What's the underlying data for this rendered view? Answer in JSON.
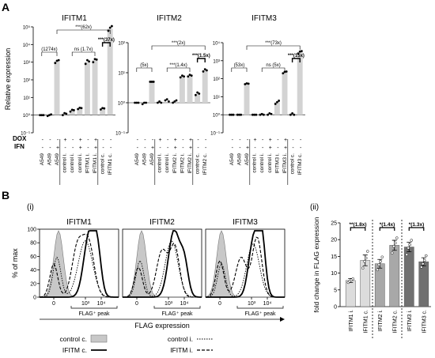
{
  "figure": {
    "panel_a_letter": "A",
    "panel_b_letter": "B",
    "panel_b_i": "(i)",
    "panel_b_ii": "(ii)",
    "row_dox": "DOX",
    "row_ifn": "IFN"
  },
  "chart_data": [
    {
      "type": "bar",
      "title": "IFITM1",
      "ylabel": "Relative expression",
      "yscale": "log",
      "ylim": [
        0.1,
        100000
      ],
      "yticks": [
        "10⁻¹",
        "10⁰",
        "10¹",
        "10²",
        "10³",
        "10⁴",
        "10⁵"
      ],
      "categories": [
        "A549",
        "A549",
        "A549",
        "control i.",
        "control i.",
        "control i.",
        "IFITM1 i.",
        "IFITM1 i.",
        "control c.",
        "IFITM1 c."
      ],
      "dox": [
        "-",
        "-",
        "-",
        "+",
        "-",
        "+",
        "-",
        "+",
        "-",
        "-"
      ],
      "ifn": [
        "-",
        "-",
        "+",
        "-",
        "-",
        "+",
        "-",
        "+",
        "-",
        "-"
      ],
      "values": [
        1,
        1,
        1100,
        1.2,
        1.8,
        2.4,
        1000,
        1300,
        2.3,
        80000
      ],
      "points": [
        [
          1,
          1,
          1
        ],
        [
          0.9,
          1,
          1.1
        ],
        [
          900,
          1200,
          1300
        ],
        [
          1,
          1.3,
          1.2
        ],
        [
          1.6,
          2,
          1.9
        ],
        [
          2.2,
          2.6,
          2.5
        ],
        [
          800,
          1300,
          1100
        ],
        [
          1000,
          1500,
          1400
        ],
        [
          2.1,
          2.5,
          2.4
        ],
        [
          60000,
          90000,
          110000
        ]
      ],
      "bar_colors": [
        "#888888",
        "#d3d3d3",
        "#d3d3d3",
        "#d3d3d3",
        "#d3d3d3",
        "#d3d3d3",
        "#d3d3d3",
        "#d3d3d3",
        "#d3d3d3",
        "#d3d3d3"
      ],
      "annotations": [
        "(1274x)",
        "***(62x)",
        "ns (1.7x)",
        "***(37x)"
      ]
    },
    {
      "type": "bar",
      "title": "IFITM2",
      "yscale": "log",
      "ylim": [
        0.1,
        100
      ],
      "yticks": [
        "10⁻¹",
        "10⁰",
        "10¹",
        "10²"
      ],
      "categories": [
        "A549",
        "A549",
        "A549",
        "control i.",
        "control i.",
        "IFITM2 i.",
        "IFITM2 i.",
        "IFITM2 i.",
        "control c.",
        "IFITM2 c."
      ],
      "dox": [
        "-",
        "-",
        "-",
        "+",
        "-",
        "+",
        "-",
        "+",
        "-",
        "-"
      ],
      "ifn": [
        "-",
        "-",
        "+",
        "-",
        "-",
        "+",
        "-",
        "+",
        "-",
        "-"
      ],
      "values": [
        1,
        1,
        5,
        1,
        1,
        1.1,
        7.5,
        8,
        2,
        12
      ],
      "points": [
        [
          1,
          1,
          1
        ],
        [
          0.9,
          1,
          1
        ],
        [
          5,
          5,
          5
        ],
        [
          1,
          1.1,
          1
        ],
        [
          1.2,
          1.3,
          1.1
        ],
        [
          1,
          1.1,
          1.2
        ],
        [
          7,
          8,
          7.5
        ],
        [
          7.5,
          8.5,
          8
        ],
        [
          1.8,
          2.2,
          2
        ],
        [
          11,
          13,
          12
        ]
      ],
      "bar_colors": [
        "#888888",
        "#d3d3d3",
        "#d3d3d3",
        "#d3d3d3",
        "#d3d3d3",
        "#d3d3d3",
        "#d3d3d3",
        "#d3d3d3",
        "#d3d3d3",
        "#d3d3d3"
      ],
      "annotations": [
        "(5x)",
        "***(2x)",
        "***(1.4x)",
        "***(1.5x)"
      ]
    },
    {
      "type": "bar",
      "title": "IFITM3",
      "yscale": "log",
      "ylim": [
        0.1,
        10000
      ],
      "yticks": [
        "10⁻¹",
        "10⁰",
        "10¹",
        "10²",
        "10³",
        "10⁴"
      ],
      "categories": [
        "A549",
        "A549",
        "A549",
        "control i.",
        "control i.",
        "control i.",
        "IFITM3 i.",
        "IFITM3 i.",
        "control c.",
        "IFITM3 c."
      ],
      "dox": [
        "-",
        "-",
        "-",
        "+",
        "-",
        "+",
        "-",
        "+",
        "-",
        "-"
      ],
      "ifn": [
        "-",
        "-",
        "+",
        "-",
        "-",
        "+",
        "-",
        "+",
        "-",
        "-"
      ],
      "values": [
        1,
        1,
        53,
        1,
        1,
        1.1,
        5,
        230,
        1,
        3000
      ],
      "points": [
        [
          1,
          1,
          1
        ],
        [
          1,
          1,
          1
        ],
        [
          50,
          55,
          53
        ],
        [
          1,
          1,
          1
        ],
        [
          1,
          1.1,
          1
        ],
        [
          1,
          1.2,
          1.1
        ],
        [
          4,
          5,
          6
        ],
        [
          200,
          240,
          250
        ],
        [
          1,
          1.2,
          1
        ],
        [
          2500,
          3200,
          3400
        ]
      ],
      "bar_colors": [
        "#888888",
        "#d3d3d3",
        "#d3d3d3",
        "#d3d3d3",
        "#d3d3d3",
        "#d3d3d3",
        "#d3d3d3",
        "#d3d3d3",
        "#d3d3d3",
        "#d3d3d3"
      ],
      "annotations": [
        "(53x)",
        "***(73x)",
        "ns (5x)",
        "***(15x)"
      ]
    },
    {
      "type": "line",
      "panels": [
        "IFITM1",
        "IFITM2",
        "IFITM3"
      ],
      "ylabel": "% of max",
      "xlabel": "FLAG expression",
      "yticks": [
        "0",
        "20",
        "40",
        "60",
        "80",
        "100"
      ],
      "xticks": [
        "0",
        "10³",
        "10⁴"
      ],
      "gate_label": "FLAG⁺ peak",
      "legend": [
        "control c.",
        "control i.",
        "IFITM c.",
        "IFITM i."
      ]
    },
    {
      "type": "bar",
      "ylabel": "fold change in FLAG expression",
      "ylim": [
        0,
        25
      ],
      "yticks": [
        "0",
        "5",
        "10",
        "15",
        "20",
        "25"
      ],
      "categories": [
        "IFITM1 i.",
        "IFITM1 c.",
        "IFITM2 i.",
        "IFITM2 c.",
        "IFITM3 i.",
        "IFITM3 c."
      ],
      "values": [
        7.8,
        13.8,
        12.8,
        18.3,
        17.8,
        13.4
      ],
      "errors": [
        0.6,
        1.6,
        1.3,
        1.5,
        1.4,
        1.2
      ],
      "points": [
        [
          7.2,
          7.6,
          8,
          8.3
        ],
        [
          11.5,
          13.5,
          14.5,
          16.5
        ],
        [
          11,
          12.5,
          13.5,
          14.8
        ],
        [
          16,
          18,
          19,
          20.5
        ],
        [
          15.5,
          17.5,
          18.5,
          19.8
        ],
        [
          11.8,
          12.8,
          13.8,
          15.2
        ]
      ],
      "bar_colors": [
        "#dcdcdc",
        "#dcdcdc",
        "#a8a8a8",
        "#a8a8a8",
        "#707070",
        "#707070"
      ],
      "annotations": [
        "**(1.8x)",
        "*(1.4x)",
        "*(1.3x)"
      ]
    }
  ]
}
